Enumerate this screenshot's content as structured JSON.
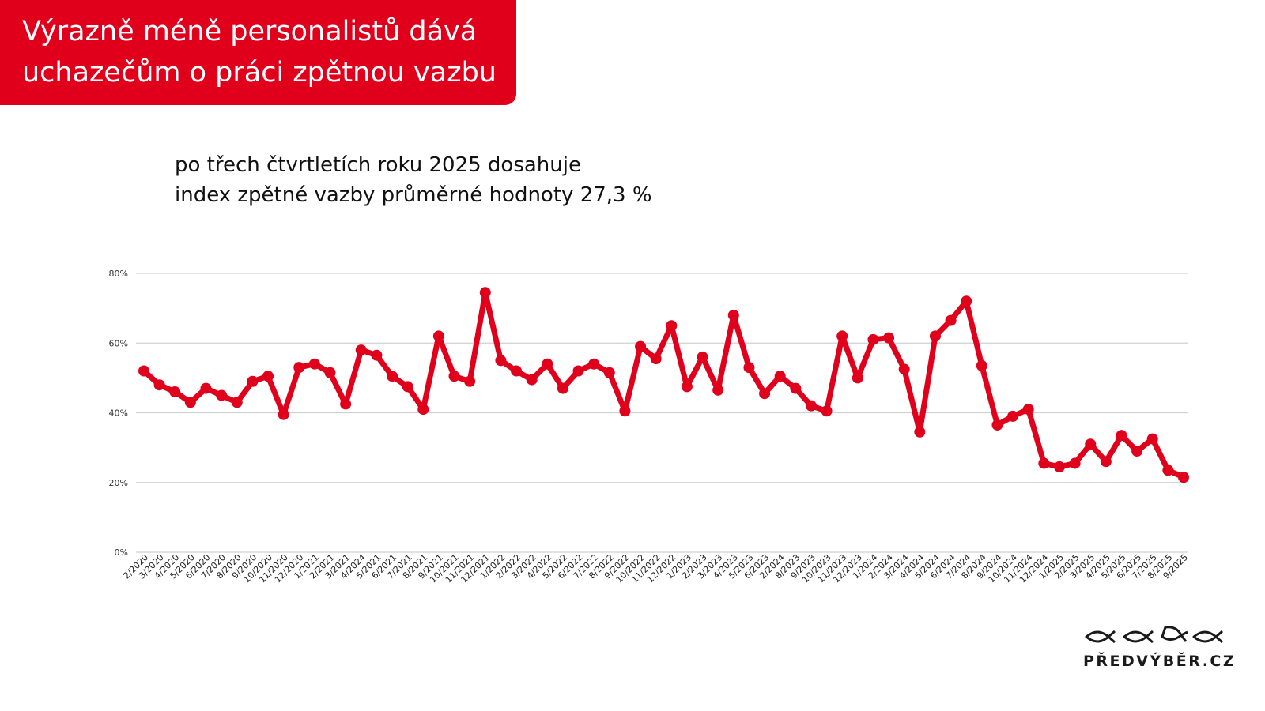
{
  "header": {
    "title_line1": "Výrazně méně personalistů dává",
    "title_line2": "uchazečům o práci zpětnou vazbu",
    "subtitle_line1": "po třech čtvrtletích roku 2025 dosahuje",
    "subtitle_line2": "index zpětné vazby průměrné hodnoty 27,3 %"
  },
  "logo": {
    "text": "PŘEDVÝBĚR.CZ",
    "icon": "fish-row-icon"
  },
  "colors": {
    "brand": "#e0001b",
    "grid": "#d0d0d0",
    "axis_text": "#333333"
  },
  "chart_data": {
    "type": "line",
    "ylim": [
      0,
      80
    ],
    "y_ticks": [
      0,
      20,
      40,
      60,
      80
    ],
    "y_tick_labels": [
      "0%",
      "20%",
      "40%",
      "60%",
      "80%"
    ],
    "grid": true,
    "categories": [
      "2/2020",
      "3/2020",
      "4/2020",
      "5/2020",
      "6/2020",
      "7/2020",
      "8/2020",
      "9/2020",
      "10/2020",
      "11/2020",
      "12/2020",
      "1/2021",
      "2/2021",
      "3/2021",
      "4/2024",
      "5/2021",
      "6/2021",
      "7/2021",
      "8/2021",
      "9/2021",
      "10/2021",
      "11/2021",
      "12/2021",
      "1/2022",
      "2/2022",
      "3/2022",
      "4/2022",
      "5/2022",
      "6/2022",
      "7/2022",
      "8/2022",
      "9/2022",
      "10/2022",
      "11/2022",
      "12/2022",
      "1/2023",
      "2/2023",
      "3/2023",
      "4/2023",
      "5/2023",
      "6/2023",
      "2/2024",
      "8/2023",
      "9/2023",
      "10/2023",
      "11/2023",
      "12/2023",
      "1/2024",
      "2/2024",
      "3/2024",
      "4/2024",
      "5/2024",
      "6/2024",
      "7/2024",
      "8/2024",
      "9/2024",
      "10/2024",
      "11/2024",
      "12/2024",
      "1/2025",
      "2/2025",
      "3/2025",
      "4/2025",
      "5/2025",
      "6/2025",
      "7/2025",
      "8/2025",
      "9/2025"
    ],
    "values": [
      52,
      48,
      46,
      43,
      47,
      45,
      43,
      49,
      50.5,
      39.5,
      53,
      54,
      51.5,
      42.5,
      58,
      56.5,
      50.5,
      47.5,
      41,
      62,
      50.5,
      49,
      74.5,
      55,
      52,
      49.5,
      54,
      47,
      52,
      54,
      51.5,
      40.5,
      59,
      55.5,
      65,
      47.5,
      56,
      46.5,
      68,
      53,
      45.5,
      50.5,
      47,
      42,
      40.5,
      62,
      50,
      61,
      61.5,
      52.5,
      34.5,
      62,
      66.5,
      72,
      53.5,
      36.5,
      39,
      41,
      25.5,
      24.5,
      25.5,
      31,
      26,
      33.5,
      29,
      32.5,
      23.5,
      21.5
    ]
  }
}
